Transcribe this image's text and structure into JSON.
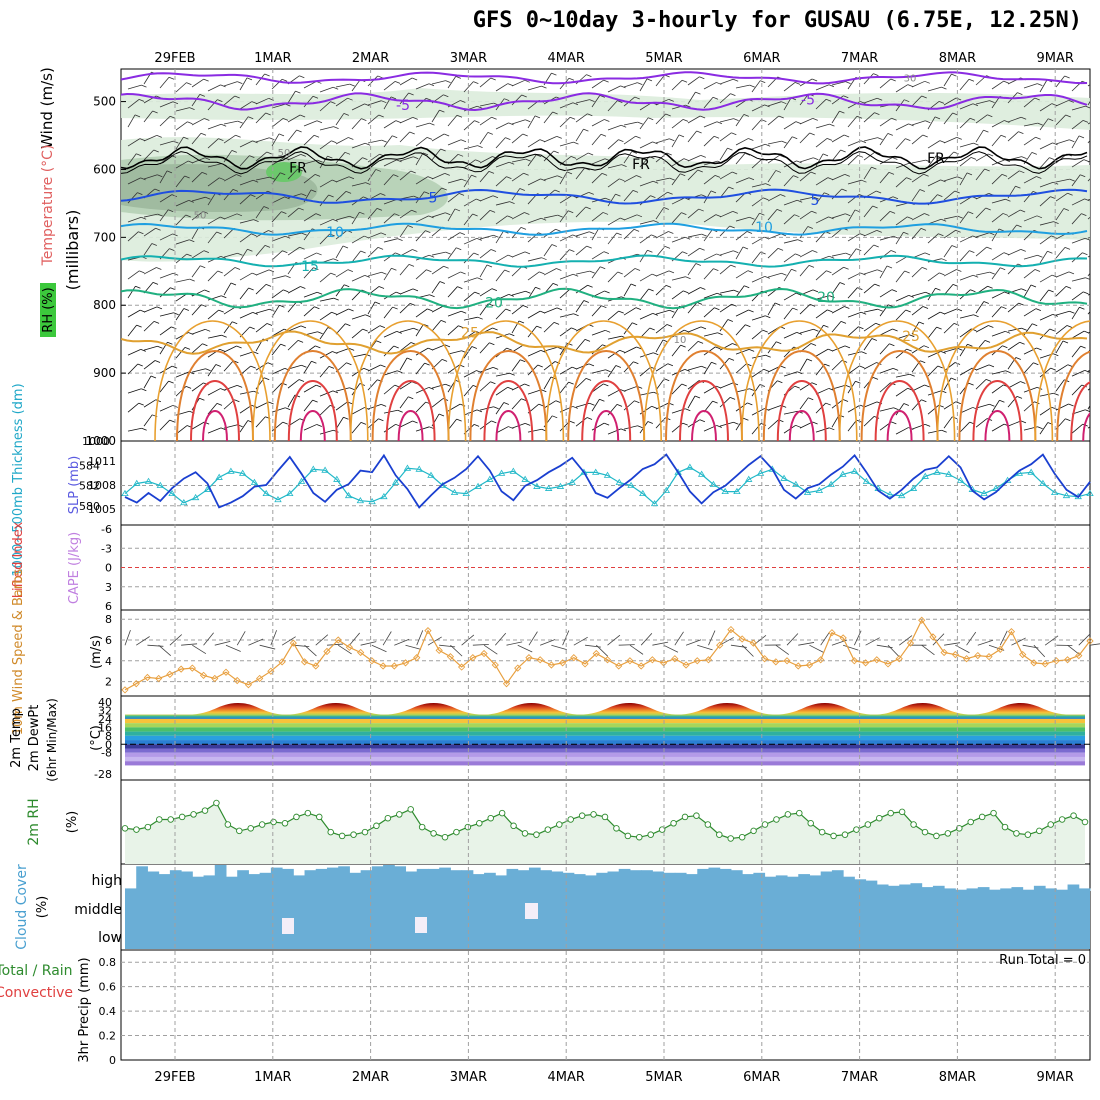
{
  "title": "GFS 0~10day 3-hourly for GUSAU (6.75E, 12.25N)",
  "colors": {
    "grid": "#a0a0a0",
    "rh_fill": "#e8f3e8",
    "temp_label": "#e06060",
    "rh_label": "#2e8b2e",
    "wind_label": "#d08a2a",
    "thickness": "#1f7fd0",
    "slp": "#5b5be0",
    "cape": "#c080e0",
    "cloud": "#6aaed6",
    "lifted": "#e04040"
  },
  "dates": [
    "29FEB",
    "1MAR",
    "2MAR",
    "3MAR",
    "4MAR",
    "5MAR",
    "6MAR",
    "7MAR",
    "8MAR",
    "9MAR"
  ],
  "panels": {
    "upper": {
      "ylabel_wind": "Wind (m/s)",
      "ylabel_temp": "Temperature (°C)",
      "ylabel_rh": "RH (%)",
      "ylabel_mb": "(millibars)",
      "y_ticks": [
        "500",
        "600",
        "700",
        "800",
        "900",
        "1000"
      ],
      "contour_labels": [
        "-5",
        "-5",
        "FR",
        "FR",
        "FR",
        "5",
        "5",
        "10",
        "10",
        "15",
        "20",
        "20",
        "25",
        "25",
        "30",
        "50",
        "50",
        "10"
      ]
    },
    "thickness": {
      "ylabel_left": "1000~500mb Thickness (dm)",
      "ylabel_right": "SLP (mb)",
      "left_ticks": [
        "584",
        "582",
        "580"
      ],
      "right_ticks": [
        "1011",
        "1008",
        "1005"
      ]
    },
    "li": {
      "ylabel_left": "Lifted Index",
      "ylabel_right": "CAPE (J/kg)",
      "ticks": [
        "-6",
        "-3",
        "0",
        "3",
        "6"
      ]
    },
    "wind10": {
      "ylabel": "10m Wind Speed & Barbs",
      "unit": "(m/s)",
      "ticks": [
        "8",
        "6",
        "4",
        "2"
      ]
    },
    "temp2m": {
      "ylabel_a": "2m Temp",
      "ylabel_b": "2m DewPt",
      "ylabel_c": "(6hr Min/Max)",
      "unit": "(°C)",
      "ticks": [
        "40",
        "32",
        "24",
        "16",
        "8",
        "0",
        "-8",
        "-28"
      ]
    },
    "rh2m": {
      "ylabel": "2m RH",
      "unit": "(%)"
    },
    "cloud": {
      "ylabel": "Cloud Cover",
      "unit": "(%)",
      "levels": [
        "high",
        "middle",
        "low"
      ]
    },
    "precip": {
      "ylabel_a": "Total / Rain",
      "ylabel_b": "Convective",
      "ylabel_c": "3hr Precip (mm)",
      "ticks": [
        "0.8",
        "0.6",
        "0.4",
        "0.2",
        "0"
      ],
      "run_total": "Run Total = 0"
    }
  },
  "chart_data": [
    {
      "type": "line",
      "name": "1000~500mb Thickness (dm)",
      "ylim": [
        578.5,
        586
      ],
      "values": [
        581.2,
        582.2,
        582.4,
        582.0,
        581.2,
        580.3,
        580.8,
        581.6,
        582.8,
        583.4,
        583.2,
        582.3,
        581.2,
        580.6,
        581.2,
        582.4,
        583.6,
        583.5,
        582.6,
        581.0,
        580.5,
        580.4,
        580.9,
        582.3,
        583.7,
        583.6,
        583.0,
        582.0,
        581.3,
        581.2,
        581.9,
        582.6,
        583.2,
        583.4,
        582.6,
        581.9,
        581.7,
        581.9,
        582.3,
        583.3,
        583.3,
        583.0,
        582.3,
        582.0,
        581.2,
        580.2,
        581.5,
        583.3,
        583.8,
        583.1,
        582.1,
        581.4,
        581.4,
        582.6,
        583.2,
        583.6,
        582.7,
        582.1,
        581.3,
        581.5,
        582.1,
        583.1,
        583.4,
        582.4,
        581.7,
        581.1,
        581.0,
        581.7,
        582.9,
        583.3,
        583.1,
        582.5,
        581.6,
        581.2,
        581.7,
        582.5,
        583.2,
        583.3,
        582.2,
        581.3,
        581.0,
        580.9,
        581.2
      ]
    },
    {
      "type": "line",
      "name": "SLP (mb)",
      "ylim": [
        1003.5,
        1013
      ],
      "values": [
        1006.5,
        1005.8,
        1007.0,
        1006.0,
        1007.6,
        1008.8,
        1009.6,
        1008.2,
        1005.2,
        1005.8,
        1006.6,
        1007.8,
        1008.0,
        1009.8,
        1011.5,
        1009.4,
        1007.0,
        1005.9,
        1007.4,
        1008.1,
        1009.8,
        1009.6,
        1011.7,
        1009.2,
        1007.5,
        1005.2,
        1006.7,
        1008.1,
        1008.9,
        1010.0,
        1011.6,
        1009.8,
        1007.2,
        1006.1,
        1007.9,
        1008.6,
        1009.6,
        1010.4,
        1011.4,
        1009.6,
        1007.0,
        1006.4,
        1007.6,
        1008.7,
        1010.0,
        1010.6,
        1011.8,
        1009.6,
        1007.2,
        1005.7,
        1007.1,
        1007.9,
        1009.2,
        1010.5,
        1011.6,
        1010.0,
        1007.4,
        1006.3,
        1007.6,
        1008.1,
        1009.3,
        1010.3,
        1011.7,
        1009.6,
        1007.3,
        1006.3,
        1007.4,
        1008.8,
        1009.9,
        1010.2,
        1011.6,
        1010.2,
        1007.3,
        1006.2,
        1007.1,
        1008.5,
        1009.8,
        1010.6,
        1011.8,
        1009.4,
        1007.4,
        1006.5,
        1008.4
      ]
    },
    {
      "type": "line",
      "name": "10m Wind Speed",
      "ylim": [
        1,
        8.5
      ],
      "values": [
        1.2,
        1.8,
        2.4,
        2.3,
        2.7,
        3.2,
        3.3,
        2.6,
        2.3,
        2.9,
        2.1,
        1.7,
        2.3,
        3.0,
        3.9,
        5.7,
        3.9,
        3.5,
        4.9,
        6.0,
        5.3,
        4.8,
        4.0,
        3.5,
        3.5,
        3.8,
        4.3,
        6.9,
        5.0,
        4.4,
        3.4,
        4.3,
        4.7,
        3.6,
        1.8,
        3.3,
        4.3,
        4.1,
        3.6,
        3.8,
        4.3,
        3.7,
        4.7,
        4.1,
        3.5,
        4.0,
        3.5,
        4.1,
        3.8,
        4.2,
        3.6,
        4.0,
        4.1,
        5.5,
        7.0,
        6.1,
        5.7,
        4.2,
        3.9,
        4.0,
        3.5,
        3.6,
        4.1,
        6.7,
        6.2,
        4.0,
        3.8,
        4.1,
        3.7,
        4.2,
        5.7,
        7.9,
        6.3,
        4.8,
        4.6,
        4.2,
        4.5,
        4.4,
        5.1,
        6.8,
        4.6,
        3.8,
        3.7,
        4.0,
        4.1,
        4.5,
        5.9
      ]
    },
    {
      "type": "line",
      "name": "2m RH",
      "values": [
        55,
        54,
        56,
        62,
        62,
        64,
        66,
        69,
        75,
        58,
        53,
        55,
        58,
        60,
        59,
        64,
        67,
        64,
        52,
        49,
        50,
        52,
        57,
        63,
        66,
        70,
        56,
        51,
        48,
        52,
        56,
        59,
        63,
        67,
        57,
        51,
        50,
        54,
        58,
        62,
        65,
        66,
        64,
        55,
        49,
        48,
        50,
        54,
        59,
        64,
        65,
        58,
        50,
        47,
        48,
        53,
        58,
        62,
        66,
        67,
        59,
        52,
        49,
        50,
        54,
        58,
        63,
        67,
        68,
        58,
        52,
        49,
        51,
        55,
        60,
        64,
        67,
        56,
        51,
        50,
        53,
        58,
        62,
        65,
        60
      ]
    },
    {
      "type": "bar",
      "name": "Cloud Cover high",
      "values": [
        10,
        95,
        75,
        65,
        80,
        75,
        55,
        60,
        100,
        55,
        80,
        65,
        70,
        90,
        85,
        60,
        80,
        85,
        90,
        95,
        70,
        80,
        95,
        100,
        95,
        75,
        85,
        85,
        90,
        80,
        80,
        65,
        70,
        60,
        85,
        80,
        90,
        80,
        75,
        70,
        65,
        60,
        70,
        75,
        85,
        80,
        80,
        75,
        70,
        70,
        65,
        85,
        90,
        85,
        80,
        65,
        70,
        55,
        60,
        55,
        65,
        60,
        75,
        80,
        55,
        45,
        40,
        25,
        20,
        25,
        30,
        15,
        20,
        10,
        5,
        10,
        15,
        5,
        10,
        15,
        5,
        20,
        10,
        5,
        25,
        10
      ]
    },
    {
      "type": "bar",
      "name": "3hr Precip",
      "ylim": [
        0,
        0.9
      ],
      "values": []
    }
  ]
}
